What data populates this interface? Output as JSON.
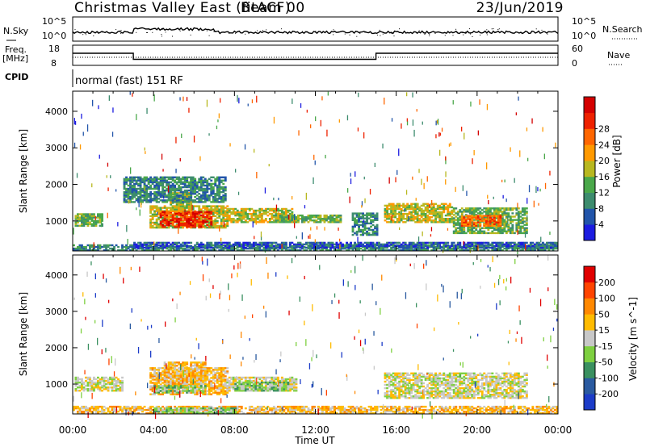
{
  "header": {
    "title": "Christmas Valley East (fitACF)",
    "beam": "Beam 00",
    "date": "23/Jun/2019"
  },
  "top_panels": {
    "nsky_label": "N.Sky",
    "nsky_ticks": [
      "10^5",
      "10^0"
    ],
    "nsearch_label": "N.Search",
    "nsearch_ticks": [
      "10^5",
      "10^0"
    ],
    "freq_label": "Freq.",
    "freq_unit": "[MHz]",
    "freq_ticks": [
      "18",
      "8"
    ],
    "nave_label": "Nave",
    "nave_ticks": [
      "60",
      "0"
    ],
    "cpid_label": "CPID",
    "cpid_value": "normal (fast) 151 RF",
    "freq_steps": [
      {
        "from": 0.0,
        "to": 3.0,
        "value": 14
      },
      {
        "from": 3.0,
        "to": 15.0,
        "value": 11
      },
      {
        "from": 15.0,
        "to": 24.0,
        "value": 14
      }
    ]
  },
  "chart_data": [
    {
      "type": "heatmap",
      "title": "",
      "xlabel": "Time UT",
      "ylabel": "Slant Range [km]",
      "xlim": [
        0,
        24
      ],
      "ylim": [
        180,
        4550
      ],
      "x_ticks": [
        "00:00",
        "04:00",
        "08:00",
        "12:00",
        "16:00",
        "20:00",
        "00:00"
      ],
      "y_ticks": [
        1000,
        2000,
        3000,
        4000
      ],
      "colorbar_label": "Power [dB]",
      "colorbar_ticks": [
        "4",
        "8",
        "12",
        "16",
        "20",
        "24",
        "28"
      ],
      "colorbar_colors": [
        "#1c1ce0",
        "#2255aa",
        "#3d8c6e",
        "#4aa84a",
        "#b8b820",
        "#ff9900",
        "#ff6600",
        "#ee2200",
        "#d40000"
      ],
      "regions": [
        {
          "t0": 0.1,
          "t1": 1.5,
          "r0": 850,
          "r1": 1180,
          "level": 3
        },
        {
          "t0": 3.8,
          "t1": 7.6,
          "r0": 800,
          "r1": 1400,
          "level": 4
        },
        {
          "t0": 4.3,
          "t1": 6.8,
          "r0": 820,
          "r1": 1250,
          "level": 7
        },
        {
          "t0": 4.8,
          "t1": 5.8,
          "r0": 1250,
          "r1": 1750,
          "level": 4
        },
        {
          "t0": 7.6,
          "t1": 10.8,
          "r0": 950,
          "r1": 1350,
          "level": 4
        },
        {
          "t0": 10.0,
          "t1": 13.2,
          "r0": 950,
          "r1": 1150,
          "level": 3
        },
        {
          "t0": 2.5,
          "t1": 7.5,
          "r0": 1500,
          "r1": 2200,
          "level": 2
        },
        {
          "t0": 13.8,
          "t1": 15.0,
          "r0": 600,
          "r1": 1200,
          "level": 2
        },
        {
          "t0": 15.4,
          "t1": 18.8,
          "r0": 950,
          "r1": 1450,
          "level": 4
        },
        {
          "t0": 18.8,
          "t1": 22.5,
          "r0": 650,
          "r1": 1350,
          "level": 3
        },
        {
          "t0": 19.2,
          "t1": 21.2,
          "r0": 850,
          "r1": 1150,
          "level": 6
        },
        {
          "t0": 0.0,
          "t1": 24.0,
          "r0": 180,
          "r1": 330,
          "level": 2
        },
        {
          "t0": 3.0,
          "t1": 24.0,
          "r0": 250,
          "r1": 400,
          "level": 1
        }
      ]
    },
    {
      "type": "heatmap",
      "title": "",
      "xlabel": "Time UT",
      "ylabel": "Slant Range [km]",
      "xlim": [
        0,
        24
      ],
      "ylim": [
        180,
        4550
      ],
      "x_ticks": [
        "00:00",
        "04:00",
        "08:00",
        "12:00",
        "16:00",
        "20:00",
        "00:00"
      ],
      "y_ticks": [
        1000,
        2000,
        3000,
        4000
      ],
      "colorbar_label": "Velocity [m s^-1]",
      "colorbar_ticks": [
        "200",
        "100",
        "50",
        "15",
        "-15",
        "-50",
        "-100",
        "-200"
      ],
      "colorbar_colors": [
        "#1c3cc8",
        "#2a5aa0",
        "#3a9060",
        "#7ed040",
        "#c8c8c8",
        "#ffbb00",
        "#ff8800",
        "#ff4400",
        "#e00000"
      ],
      "regions": [
        {
          "t0": 0.1,
          "t1": 2.5,
          "r0": 800,
          "r1": 1180,
          "level": 4
        },
        {
          "t0": 3.8,
          "t1": 7.6,
          "r0": 700,
          "r1": 1450,
          "level": 5
        },
        {
          "t0": 4.5,
          "t1": 6.5,
          "r0": 900,
          "r1": 1600,
          "level": 5
        },
        {
          "t0": 7.6,
          "t1": 11.0,
          "r0": 800,
          "r1": 1200,
          "level": 4
        },
        {
          "t0": 8.0,
          "t1": 10.6,
          "r0": 800,
          "r1": 1050,
          "level": 3
        },
        {
          "t0": 4.0,
          "t1": 6.5,
          "r0": 750,
          "r1": 950,
          "level": 3
        },
        {
          "t0": 15.4,
          "t1": 22.5,
          "r0": 600,
          "r1": 1300,
          "level": 4
        },
        {
          "t0": 0.0,
          "t1": 24.0,
          "r0": 180,
          "r1": 380,
          "level": 5
        },
        {
          "t0": 4.0,
          "t1": 8.0,
          "r0": 180,
          "r1": 320,
          "level": 3
        }
      ]
    }
  ]
}
